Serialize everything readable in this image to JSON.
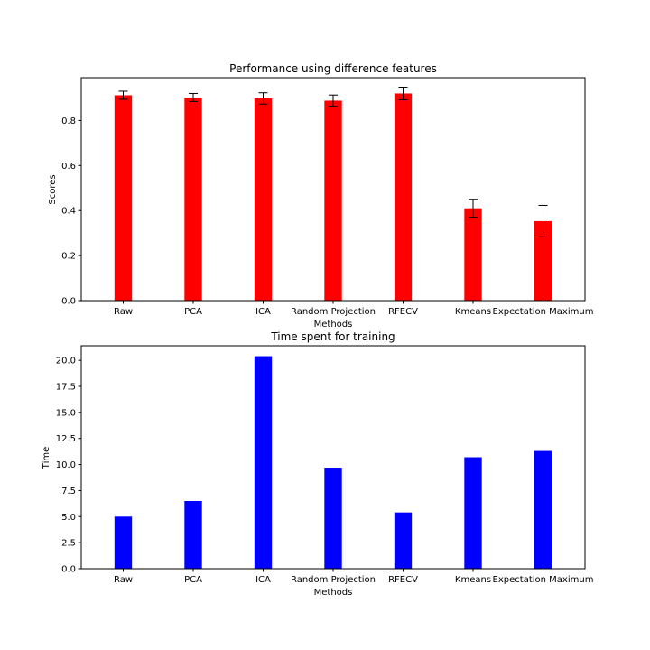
{
  "chart_data": [
    {
      "type": "bar",
      "title": "Performance using difference features",
      "xlabel": "Methods",
      "ylabel": "Scores",
      "categories": [
        "Raw",
        "PCA",
        "ICA",
        "Random Projection",
        "RFECV",
        "Kmeans",
        "Expectation Maximum"
      ],
      "values": [
        0.912,
        0.902,
        0.898,
        0.888,
        0.92,
        0.41,
        0.353
      ],
      "errors": [
        0.018,
        0.018,
        0.025,
        0.025,
        0.028,
        0.04,
        0.07
      ],
      "ylim": [
        0,
        0.99
      ],
      "yticks": [
        0.0,
        0.2,
        0.4,
        0.6,
        0.8
      ],
      "ytick_labels": [
        "0.0",
        "0.2",
        "0.4",
        "0.6",
        "0.8"
      ],
      "bar_color": "#ff0000",
      "error_color": "#000000",
      "grid": false
    },
    {
      "type": "bar",
      "title": "Time spent for training",
      "xlabel": "Methods",
      "ylabel": "Time",
      "categories": [
        "Raw",
        "PCA",
        "ICA",
        "Random Projection",
        "RFECV",
        "Kmeans",
        "Expectation Maximum"
      ],
      "values": [
        5.0,
        6.5,
        20.4,
        9.7,
        5.4,
        10.7,
        11.3
      ],
      "ylim": [
        0,
        21.4
      ],
      "yticks": [
        0.0,
        2.5,
        5.0,
        7.5,
        10.0,
        12.5,
        15.0,
        17.5,
        20.0
      ],
      "ytick_labels": [
        "0.0",
        "2.5",
        "5.0",
        "7.5",
        "10.0",
        "12.5",
        "15.0",
        "17.5",
        "20.0"
      ],
      "bar_color": "#0000ff",
      "grid": false
    }
  ]
}
